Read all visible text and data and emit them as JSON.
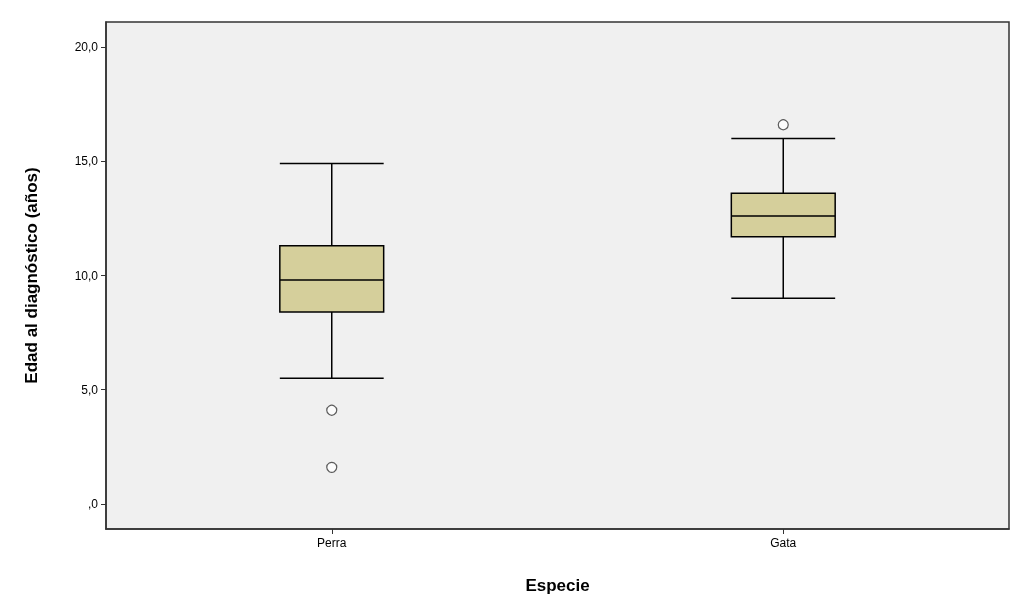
{
  "chart_data": {
    "type": "box",
    "xlabel": "Especie",
    "ylabel": "Edad al diagnóstico (años)",
    "categories": [
      "Perra",
      "Gata"
    ],
    "series": [
      {
        "color": "#d5cf9b",
        "boxes": [
          {
            "low": 5.5,
            "q1": 8.4,
            "median": 9.8,
            "q3": 11.3,
            "high": 14.9,
            "outliers": [
              4.1,
              1.6
            ]
          },
          {
            "low": 9.0,
            "q1": 11.7,
            "median": 12.6,
            "q3": 13.6,
            "high": 16.0,
            "outliers": [
              16.6
            ]
          }
        ]
      }
    ],
    "ylim": [
      -1.1,
      21.1
    ],
    "yticks": [
      {
        "value": 0,
        "label": ",0"
      },
      {
        "value": 5,
        "label": "5,0"
      },
      {
        "value": 10,
        "label": "10,0"
      },
      {
        "value": 15,
        "label": "15,0"
      },
      {
        "value": 20,
        "label": "20,0"
      }
    ],
    "grid": false,
    "marker": "circle"
  }
}
